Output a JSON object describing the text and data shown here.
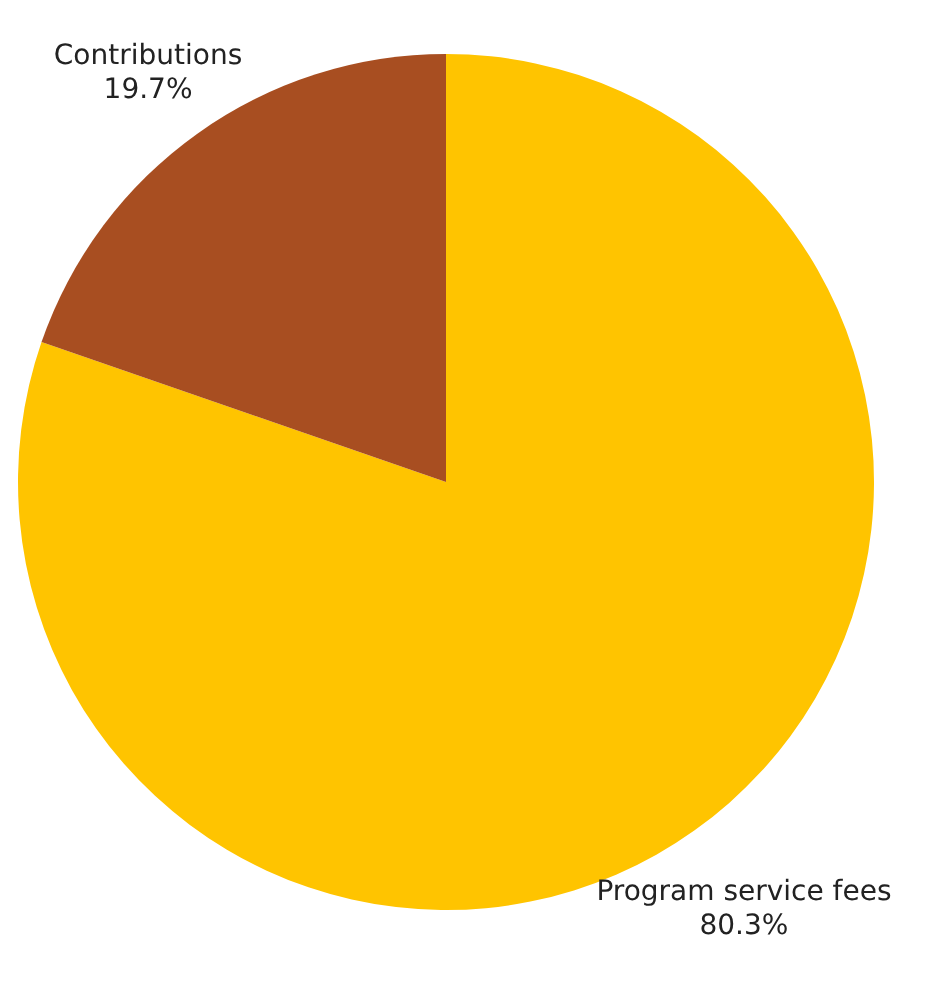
{
  "chart_data": {
    "type": "pie",
    "categories": [
      "Program service fees",
      "Contributions"
    ],
    "values": [
      80.3,
      19.7
    ],
    "colors": [
      "#ffc400",
      "#a84e21"
    ],
    "value_labels": [
      "80.3%",
      "19.7%"
    ]
  }
}
